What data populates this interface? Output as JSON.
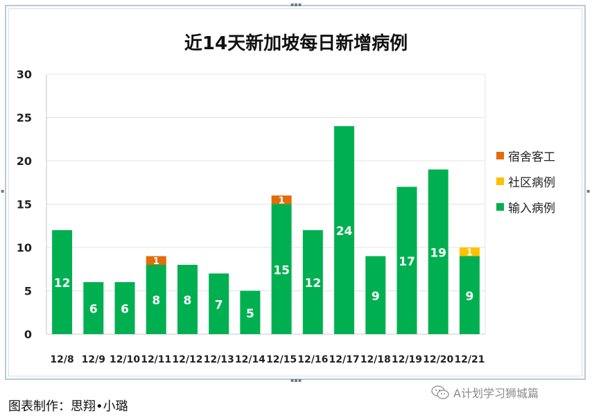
{
  "colors": {
    "dormitory": "#e36c0a",
    "community": "#ffc000",
    "imported": "#00b050",
    "grid": "#e3e3e3",
    "frame": "#b9c9d6"
  },
  "chart_data": {
    "type": "bar",
    "stacked": true,
    "title": "近14天新加坡每日新增病例",
    "categories": [
      "12/8",
      "12/9",
      "12/10",
      "12/11",
      "12/12",
      "12/13",
      "12/14",
      "12/15",
      "12/16",
      "12/17",
      "12/18",
      "12/19",
      "12/20",
      "12/21"
    ],
    "series": [
      {
        "name": "输入病例",
        "color": "#00b050",
        "values": [
          12,
          6,
          6,
          8,
          8,
          7,
          5,
          15,
          12,
          24,
          9,
          17,
          19,
          9
        ]
      },
      {
        "name": "宿舍客工",
        "color": "#e36c0a",
        "values": [
          0,
          0,
          0,
          1,
          0,
          0,
          0,
          1,
          0,
          0,
          0,
          0,
          0,
          0
        ]
      },
      {
        "name": "社区病例",
        "color": "#ffc000",
        "values": [
          0,
          0,
          0,
          0,
          0,
          0,
          0,
          0,
          0,
          0,
          0,
          0,
          0,
          1
        ]
      }
    ],
    "legend": [
      "宿舍客工",
      "社区病例",
      "输入病例"
    ],
    "legend_position": "right",
    "ylim": [
      0,
      30
    ],
    "yticks": [
      0,
      5,
      10,
      15,
      20,
      25,
      30
    ],
    "grid": true,
    "xlabel": "",
    "ylabel": ""
  },
  "legend_items": [
    {
      "label": "宿舍客工",
      "color": "#e36c0a"
    },
    {
      "label": "社区病例",
      "color": "#ffc000"
    },
    {
      "label": "输入病例",
      "color": "#00b050"
    }
  ],
  "footer": {
    "credit": "图表制作：思翔•小璐",
    "watermark": "A计划学习狮城篇"
  }
}
